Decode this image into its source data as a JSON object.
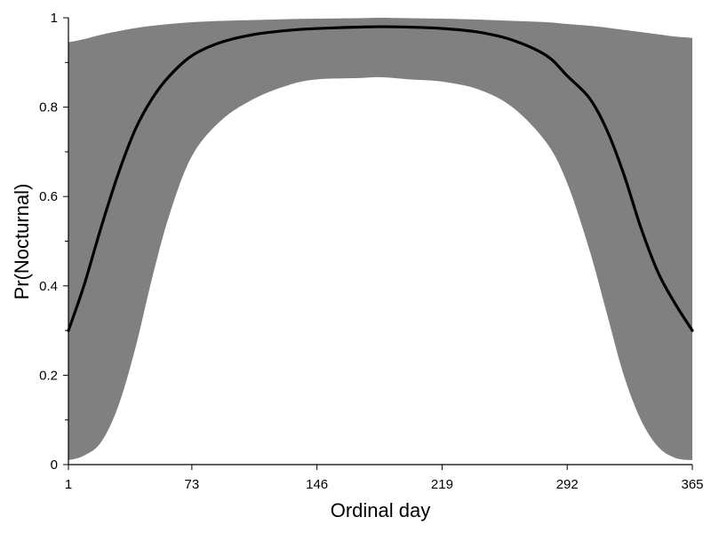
{
  "chart_data": {
    "type": "area",
    "title": "",
    "xlabel": "Ordinal day",
    "ylabel": "Pr(Nocturnal)",
    "xlim": [
      1,
      365
    ],
    "ylim": [
      0,
      1
    ],
    "x_ticks": [
      1,
      73,
      146,
      219,
      292,
      365
    ],
    "y_ticks": [
      0,
      0.2,
      0.4,
      0.6,
      0.8,
      1
    ],
    "y_tick_labels": [
      "0",
      "0.2",
      "0.4",
      "0.6",
      "0.8",
      "1"
    ],
    "y_minor_ticks": [
      0.1,
      0.3,
      0.5,
      0.7,
      0.9
    ],
    "grid": false,
    "legend": "none",
    "colors": {
      "band": "#808080",
      "line": "#000000"
    },
    "series": [
      {
        "kind": "line",
        "x": [
          1,
          10,
          20,
          30,
          40,
          50,
          60,
          73,
          90,
          110,
          130,
          146,
          170,
          183,
          200,
          219,
          240,
          260,
          280,
          292,
          305,
          315,
          325,
          335,
          345,
          355,
          365
        ],
        "y": [
          0.3,
          0.4,
          0.53,
          0.65,
          0.75,
          0.82,
          0.87,
          0.915,
          0.945,
          0.963,
          0.972,
          0.976,
          0.979,
          0.98,
          0.979,
          0.976,
          0.968,
          0.95,
          0.915,
          0.87,
          0.82,
          0.75,
          0.65,
          0.53,
          0.43,
          0.36,
          0.3
        ]
      },
      {
        "kind": "band",
        "x": [
          1,
          10,
          20,
          30,
          40,
          50,
          60,
          73,
          90,
          110,
          130,
          146,
          170,
          183,
          200,
          219,
          240,
          260,
          280,
          292,
          305,
          315,
          325,
          335,
          345,
          355,
          365
        ],
        "upper": [
          0.945,
          0.952,
          0.962,
          0.97,
          0.977,
          0.982,
          0.986,
          0.99,
          0.993,
          0.995,
          0.997,
          0.998,
          0.999,
          1.0,
          0.999,
          0.998,
          0.996,
          0.993,
          0.99,
          0.986,
          0.982,
          0.978,
          0.973,
          0.968,
          0.963,
          0.958,
          0.955
        ],
        "lower": [
          0.01,
          0.02,
          0.05,
          0.13,
          0.26,
          0.42,
          0.56,
          0.69,
          0.77,
          0.82,
          0.85,
          0.862,
          0.865,
          0.867,
          0.862,
          0.857,
          0.84,
          0.8,
          0.72,
          0.63,
          0.48,
          0.34,
          0.2,
          0.1,
          0.04,
          0.015,
          0.01
        ]
      }
    ]
  }
}
